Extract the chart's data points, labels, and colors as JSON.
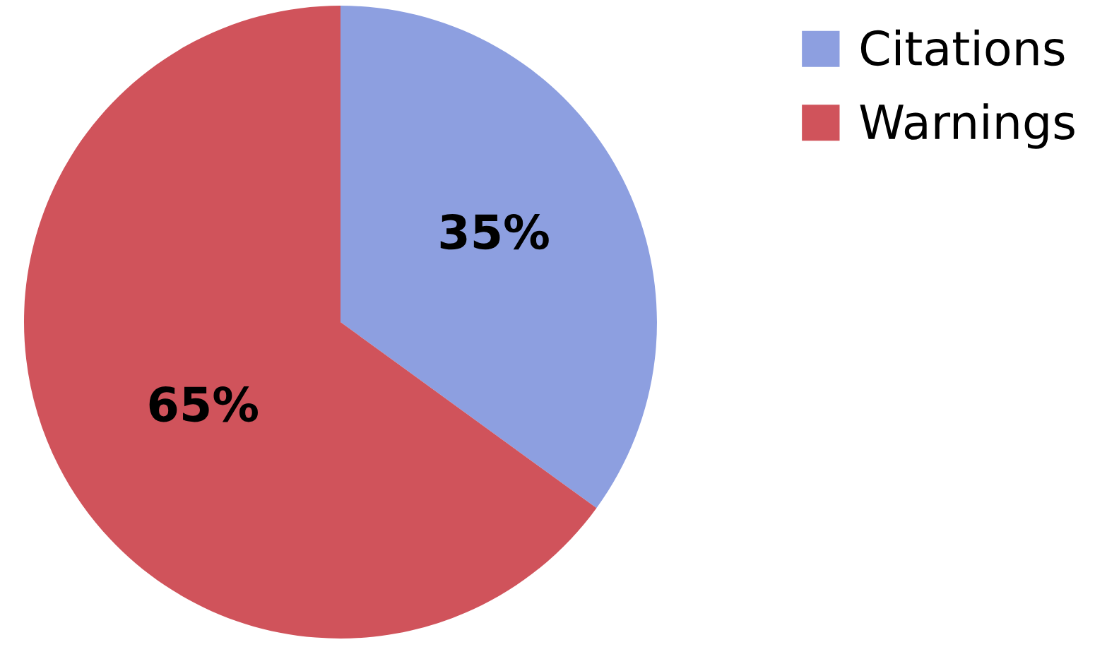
{
  "chart_data": {
    "type": "pie",
    "categories": [
      "Citations",
      "Warnings"
    ],
    "values": [
      35,
      65
    ],
    "colors": [
      "#8d9fe0",
      "#d0535b"
    ],
    "value_labels": [
      "35%",
      "65%"
    ],
    "legend": "top right"
  }
}
